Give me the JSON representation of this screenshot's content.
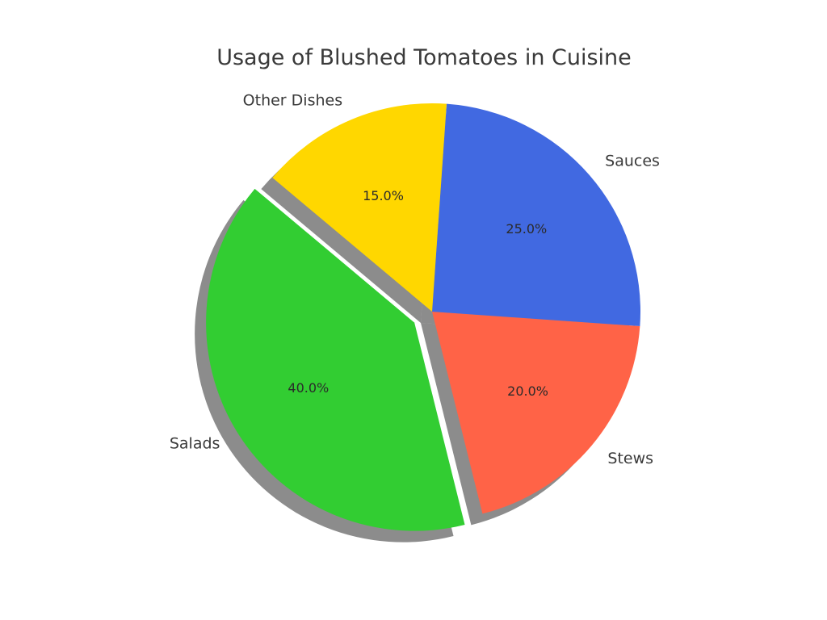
{
  "chart_data": {
    "type": "pie",
    "title": "Usage of Blushed Tomatoes in Cuisine",
    "start_angle_deg": 140,
    "direction": "counterclockwise",
    "shadow": true,
    "slices": [
      {
        "label": "Salads",
        "value": 40.0,
        "pct_text": "40.0%",
        "color": "#32CD32",
        "exploded": true
      },
      {
        "label": "Stews",
        "value": 20.0,
        "pct_text": "20.0%",
        "color": "#FF6347",
        "exploded": false
      },
      {
        "label": "Sauces",
        "value": 25.0,
        "pct_text": "25.0%",
        "color": "#4169E1",
        "exploded": false
      },
      {
        "label": "Other Dishes",
        "value": 15.0,
        "pct_text": "15.0%",
        "color": "#FFD700",
        "exploded": false
      }
    ]
  }
}
